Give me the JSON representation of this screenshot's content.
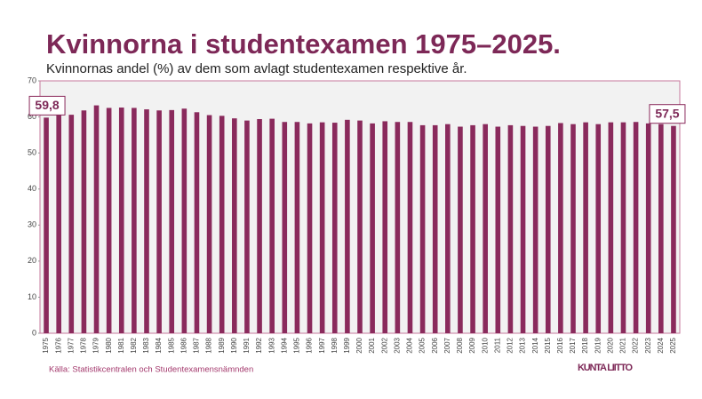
{
  "chart_data": {
    "type": "bar",
    "title": "Kvinnorna i studentexamen 1975–2025.",
    "subtitle": "Kvinnornas andel (%) av dem som avlagt studentexamen respektive år.",
    "source": "Källa: Statistikcentralen och Studentexamensnämnden",
    "logo": "KUNTA LIITTO",
    "color": "#8a2a5c",
    "grid": false,
    "categories": [
      "1975",
      "1976",
      "1977",
      "1978",
      "1979",
      "1980",
      "1981",
      "1982",
      "1983",
      "1984",
      "1985",
      "1986",
      "1987",
      "1988",
      "1989",
      "1990",
      "1991",
      "1992",
      "1993",
      "1994",
      "1995",
      "1996",
      "1997",
      "1998",
      "1999",
      "2000",
      "2001",
      "2002",
      "2003",
      "2004",
      "2005",
      "2006",
      "2007",
      "2008",
      "2009",
      "2010",
      "2011",
      "2012",
      "2013",
      "2014",
      "2015",
      "2016",
      "2017",
      "2018",
      "2019",
      "2020",
      "2021",
      "2022",
      "2023",
      "2024",
      "2025"
    ],
    "values": [
      59.8,
      60.5,
      60.6,
      61.8,
      63.2,
      62.5,
      62.6,
      62.5,
      62.1,
      61.8,
      61.9,
      62.3,
      61.3,
      60.5,
      60.3,
      59.6,
      59.0,
      59.4,
      59.5,
      58.6,
      58.6,
      58.2,
      58.5,
      58.4,
      59.2,
      59.0,
      58.2,
      58.8,
      58.6,
      58.6,
      57.7,
      57.7,
      58.0,
      57.3,
      57.7,
      58.0,
      57.3,
      57.7,
      57.5,
      57.3,
      57.5,
      58.3,
      58.0,
      58.5,
      58.0,
      58.5,
      58.5,
      58.6,
      58.2,
      58.0,
      57.5
    ],
    "value_labels": [
      "59,8",
      null,
      null,
      null,
      null,
      null,
      null,
      null,
      null,
      null,
      null,
      null,
      null,
      null,
      null,
      null,
      null,
      null,
      null,
      null,
      null,
      null,
      null,
      null,
      null,
      null,
      null,
      null,
      null,
      null,
      null,
      null,
      null,
      null,
      null,
      null,
      null,
      null,
      null,
      null,
      null,
      null,
      null,
      null,
      null,
      null,
      null,
      null,
      null,
      null,
      "57,5"
    ],
    "ylim": [
      0,
      70
    ],
    "yticks": [
      0,
      10,
      20,
      30,
      40,
      50,
      60,
      70
    ]
  }
}
